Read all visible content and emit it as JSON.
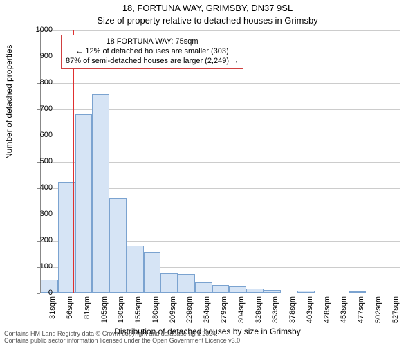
{
  "titles": {
    "line1": "18, FORTUNA WAY, GRIMSBY, DN37 9SL",
    "line2": "Size of property relative to detached houses in Grimsby"
  },
  "axes": {
    "ylabel": "Number of detached properties",
    "xlabel": "Distribution of detached houses by size in Grimsby",
    "ymax": 1000,
    "yticks": [
      0,
      100,
      200,
      300,
      400,
      500,
      600,
      700,
      800,
      900,
      1000
    ],
    "grid_color": "#cccccc",
    "axis_color": "#888888"
  },
  "histogram": {
    "type": "histogram",
    "bin_labels_sqm": [
      31,
      56,
      81,
      105,
      130,
      155,
      180,
      209,
      229,
      254,
      279,
      304,
      329,
      353,
      378,
      403,
      428,
      453,
      477,
      502,
      527
    ],
    "counts": [
      50,
      420,
      680,
      755,
      360,
      180,
      155,
      75,
      70,
      40,
      30,
      25,
      15,
      10,
      0,
      8,
      0,
      0,
      6,
      0,
      0
    ],
    "bar_fill": "#d6e4f5",
    "bar_stroke": "#7ba3d0"
  },
  "reference": {
    "value_sqm": 75,
    "color": "#e03030"
  },
  "annotation": {
    "lines": [
      "18 FORTUNA WAY: 75sqm",
      "← 12% of detached houses are smaller (303)",
      "87% of semi-detached houses are larger (2,249) →"
    ],
    "border_color": "#d04040"
  },
  "footer": {
    "line1": "Contains HM Land Registry data © Crown copyright and database right 2024.",
    "line2": "Contains public sector information licensed under the Open Government Licence v3.0."
  },
  "style": {
    "background": "#ffffff",
    "font": "Arial",
    "title_fontsize": 13,
    "tick_fontsize": 11,
    "label_fontsize": 12
  }
}
